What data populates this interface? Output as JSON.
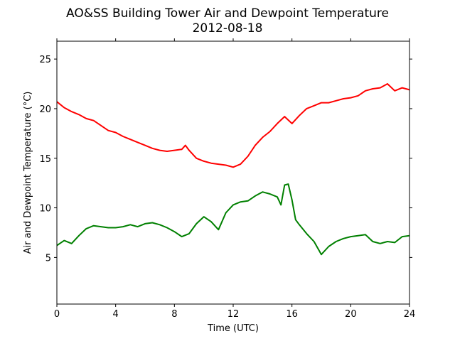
{
  "chart_data": {
    "type": "line",
    "title": "AO&SS Building Tower Air and Dewpoint Temperature",
    "subtitle": "2012-08-18",
    "xlabel": "Time (UTC)",
    "ylabel": "Air and Dewpoint Temperature (°C)",
    "xlim": [
      0,
      24
    ],
    "ylim": [
      0.3,
      26.8
    ],
    "xticks": [
      0,
      4,
      8,
      12,
      16,
      20,
      24
    ],
    "xtick_labels": [
      "0",
      "4",
      "8",
      "12",
      "16",
      "20",
      "24"
    ],
    "yticks": [
      5,
      10,
      15,
      20,
      25
    ],
    "ytick_labels": [
      "5",
      "10",
      "15",
      "20",
      "25"
    ],
    "grid": false,
    "series": [
      {
        "color": "#ff0000",
        "x": [
          0,
          0.5,
          1,
          1.5,
          2,
          2.5,
          3,
          3.5,
          4,
          4.5,
          5,
          5.5,
          6,
          6.5,
          7,
          7.5,
          8,
          8.5,
          8.75,
          9,
          9.5,
          10,
          10.5,
          11,
          11.5,
          12,
          12.5,
          13,
          13.5,
          14,
          14.5,
          15,
          15.5,
          16,
          16.5,
          17,
          17.5,
          18,
          18.5,
          19,
          19.5,
          20,
          20.5,
          21,
          21.5,
          22,
          22.5,
          23,
          23.5,
          24
        ],
        "y": [
          20.7,
          20.1,
          19.7,
          19.4,
          19.0,
          18.8,
          18.3,
          17.8,
          17.6,
          17.2,
          16.9,
          16.6,
          16.3,
          16.0,
          15.8,
          15.7,
          15.8,
          15.9,
          16.3,
          15.8,
          15.0,
          14.7,
          14.5,
          14.4,
          14.3,
          14.1,
          14.4,
          15.2,
          16.3,
          17.1,
          17.7,
          18.5,
          19.2,
          18.5,
          19.3,
          20.0,
          20.3,
          20.6,
          20.6,
          20.8,
          21.0,
          21.1,
          21.3,
          21.8,
          22.0,
          22.1,
          22.5,
          21.8,
          22.1,
          21.9
        ]
      },
      {
        "color": "#008000",
        "x": [
          0,
          0.5,
          1,
          1.5,
          2,
          2.5,
          3,
          3.5,
          4,
          4.5,
          5,
          5.5,
          6,
          6.5,
          7,
          7.5,
          8,
          8.5,
          9,
          9.5,
          10,
          10.5,
          11,
          11.5,
          12,
          12.5,
          13,
          13.5,
          14,
          14.5,
          15,
          15.25,
          15.5,
          15.75,
          16,
          16.25,
          16.5,
          17,
          17.5,
          18,
          18.5,
          19,
          19.5,
          20,
          20.5,
          21,
          21.5,
          22,
          22.5,
          23,
          23.5,
          24
        ],
        "y": [
          6.2,
          6.7,
          6.4,
          7.2,
          7.9,
          8.2,
          8.1,
          8.0,
          8.0,
          8.1,
          8.3,
          8.1,
          8.4,
          8.5,
          8.3,
          8.0,
          7.6,
          7.1,
          7.4,
          8.4,
          9.1,
          8.6,
          7.8,
          9.5,
          10.3,
          10.6,
          10.7,
          11.2,
          11.6,
          11.4,
          11.1,
          10.3,
          12.3,
          12.4,
          10.8,
          8.8,
          8.3,
          7.4,
          6.6,
          5.3,
          6.1,
          6.6,
          6.9,
          7.1,
          7.2,
          7.3,
          6.6,
          6.4,
          6.6,
          6.5,
          7.1,
          7.2
        ]
      }
    ]
  }
}
